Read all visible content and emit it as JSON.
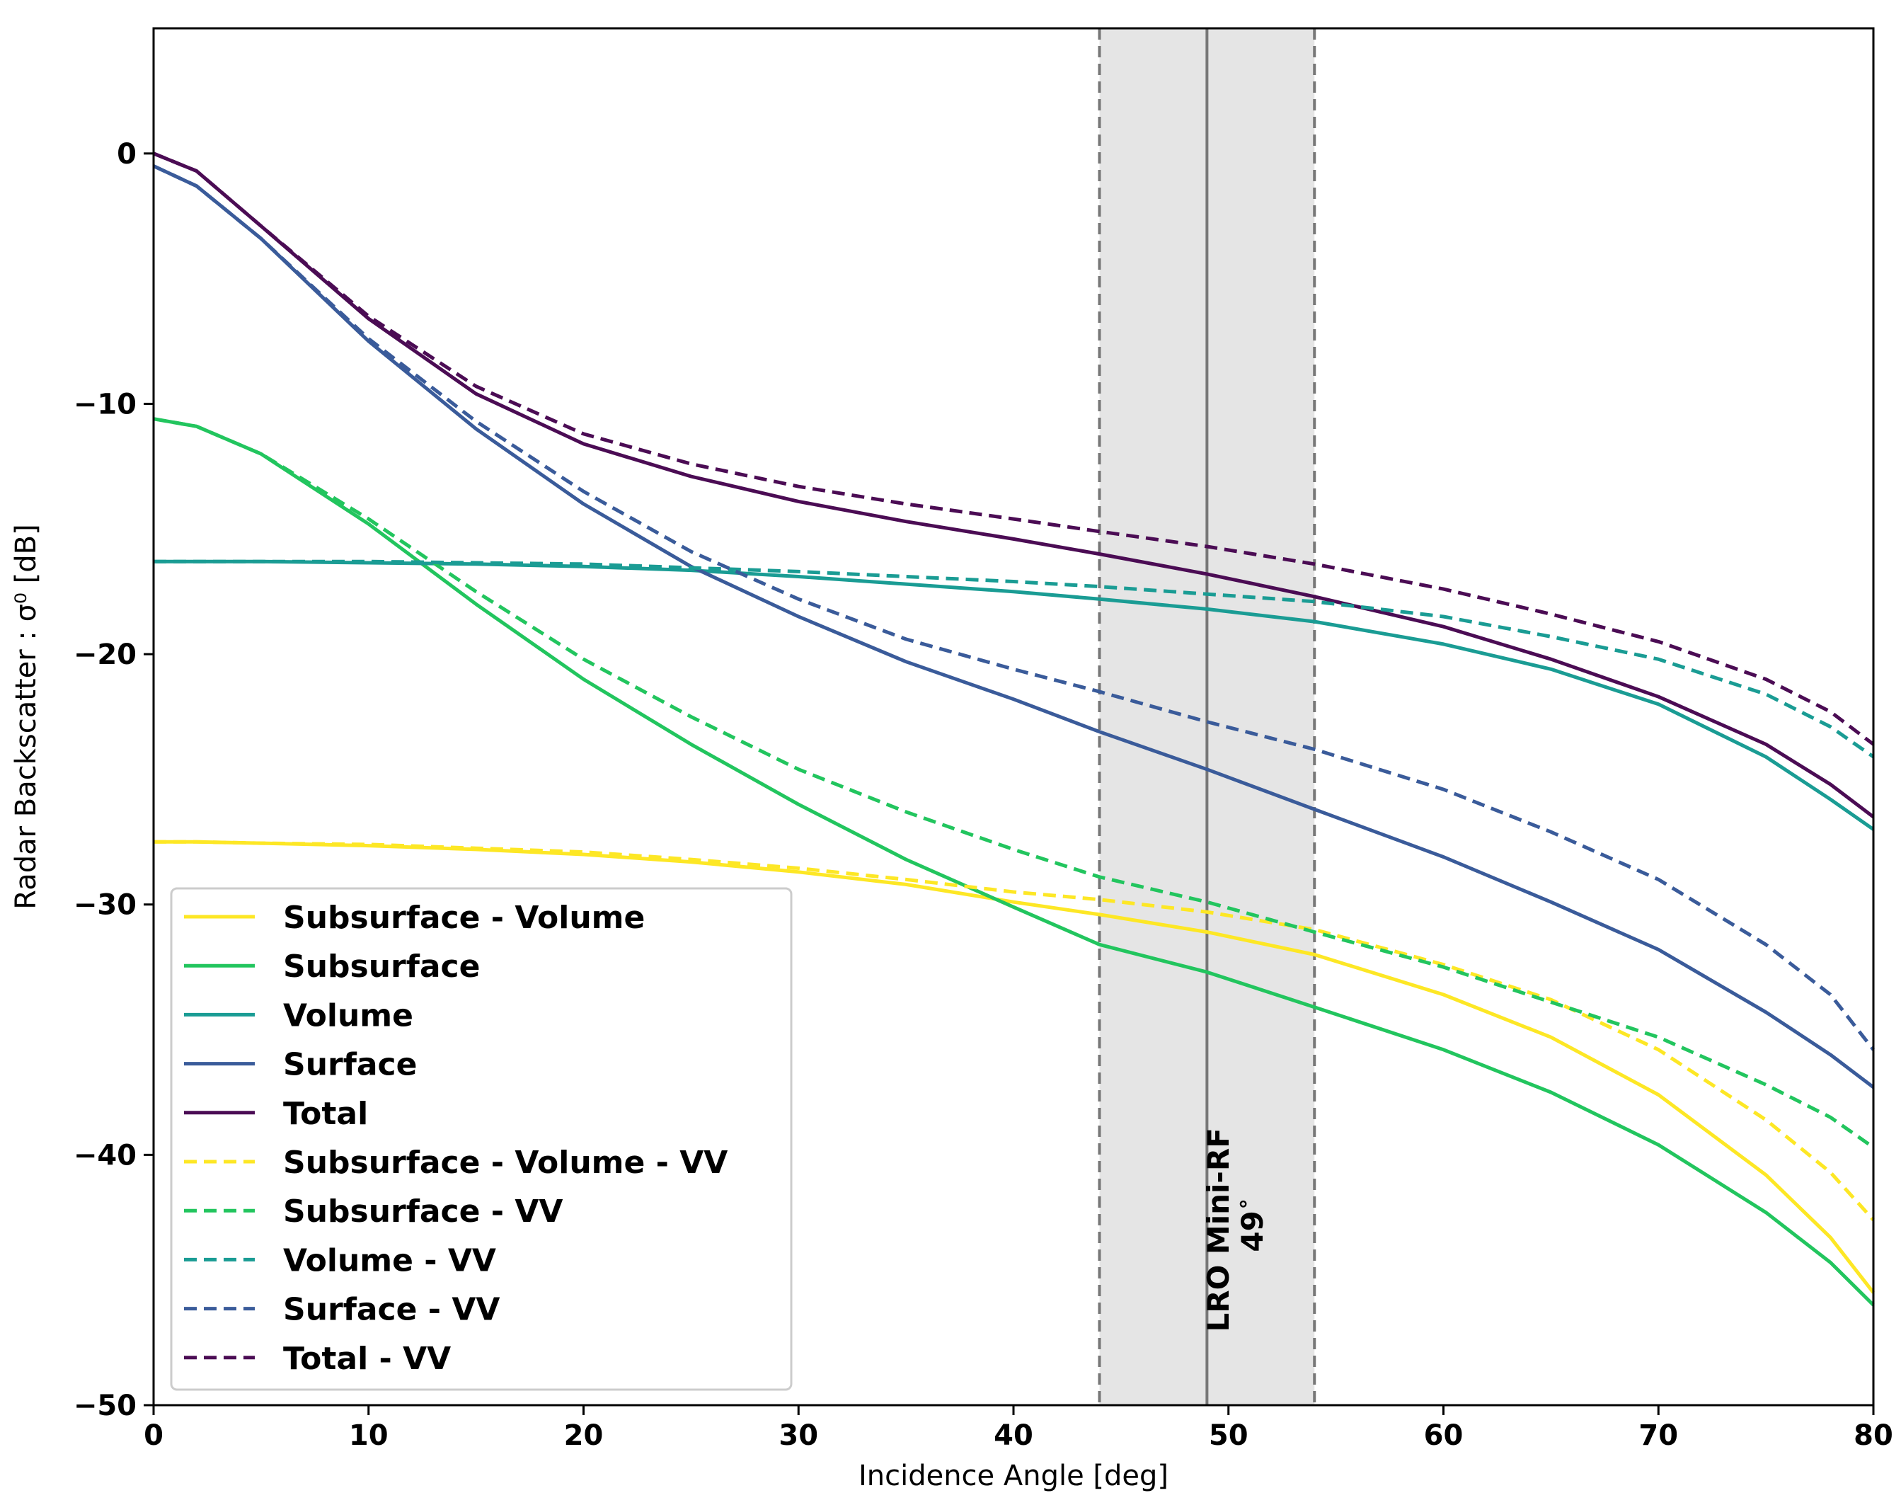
{
  "chart_data": {
    "type": "line",
    "title": "",
    "xlabel": "Incidence Angle [deg]",
    "ylabel": "Radar Backscatter : σ⁰ [dB]",
    "xlim": [
      0,
      80
    ],
    "ylim": [
      -50,
      5
    ],
    "xticks": [
      0,
      10,
      20,
      30,
      40,
      50,
      60,
      70,
      80
    ],
    "yticks": [
      0,
      -10,
      -20,
      -30,
      -40,
      -50
    ],
    "ytick_labels": [
      "0",
      "−10",
      "−20",
      "−30",
      "−40",
      "−50"
    ],
    "grid": false,
    "legend_position": "lower-left",
    "x": [
      0,
      2,
      5,
      10,
      15,
      20,
      25,
      30,
      35,
      40,
      44,
      49,
      54,
      60,
      65,
      70,
      75,
      78,
      80
    ],
    "series": [
      {
        "name": "Subsurface - Volume",
        "color": "#fde725",
        "dash": "solid",
        "values": [
          -27.5,
          -27.5,
          -27.55,
          -27.65,
          -27.8,
          -28.0,
          -28.3,
          -28.7,
          -29.2,
          -29.9,
          -30.4,
          -31.1,
          -32.0,
          -33.6,
          -35.3,
          -37.6,
          -40.8,
          -43.3,
          -45.5
        ]
      },
      {
        "name": "Subsurface",
        "color": "#22c55e",
        "dash": "solid",
        "values": [
          -10.6,
          -10.9,
          -12.0,
          -14.8,
          -18.0,
          -21.0,
          -23.6,
          -26.0,
          -28.2,
          -30.1,
          -31.6,
          -32.7,
          -34.1,
          -35.8,
          -37.5,
          -39.6,
          -42.3,
          -44.3,
          -46.0
        ]
      },
      {
        "name": "Volume",
        "color": "#1a9c94",
        "dash": "solid",
        "values": [
          -16.3,
          -16.3,
          -16.3,
          -16.35,
          -16.4,
          -16.5,
          -16.65,
          -16.9,
          -17.2,
          -17.5,
          -17.8,
          -18.2,
          -18.7,
          -19.6,
          -20.6,
          -22.0,
          -24.1,
          -25.8,
          -27.0
        ]
      },
      {
        "name": "Surface",
        "color": "#3a5b9a",
        "dash": "solid",
        "values": [
          -0.5,
          -1.3,
          -3.4,
          -7.5,
          -11.0,
          -14.0,
          -16.5,
          -18.5,
          -20.3,
          -21.8,
          -23.1,
          -24.6,
          -26.2,
          -28.1,
          -29.9,
          -31.8,
          -34.3,
          -36.0,
          -37.3
        ]
      },
      {
        "name": "Total",
        "color": "#4b0c54",
        "dash": "solid",
        "values": [
          0.0,
          -0.7,
          -2.9,
          -6.6,
          -9.6,
          -11.6,
          -12.9,
          -13.9,
          -14.7,
          -15.4,
          -16.0,
          -16.8,
          -17.7,
          -18.9,
          -20.2,
          -21.7,
          -23.6,
          -25.2,
          -26.5
        ]
      },
      {
        "name": "Subsurface - Volume - VV",
        "color": "#fde725",
        "dash": "dashed",
        "values": [
          -27.5,
          -27.5,
          -27.55,
          -27.6,
          -27.75,
          -27.9,
          -28.2,
          -28.55,
          -29.0,
          -29.5,
          -29.8,
          -30.3,
          -31.0,
          -32.4,
          -33.8,
          -35.8,
          -38.6,
          -40.7,
          -42.6
        ]
      },
      {
        "name": "Subsurface - VV",
        "color": "#22c55e",
        "dash": "dashed",
        "values": [
          -10.6,
          -10.9,
          -12.0,
          -14.6,
          -17.5,
          -20.2,
          -22.5,
          -24.6,
          -26.3,
          -27.8,
          -28.9,
          -29.9,
          -31.1,
          -32.5,
          -33.9,
          -35.3,
          -37.2,
          -38.5,
          -39.7
        ]
      },
      {
        "name": "Volume - VV",
        "color": "#1a9c94",
        "dash": "dashed",
        "values": [
          -16.3,
          -16.3,
          -16.3,
          -16.3,
          -16.35,
          -16.4,
          -16.55,
          -16.7,
          -16.9,
          -17.1,
          -17.3,
          -17.6,
          -17.9,
          -18.5,
          -19.3,
          -20.2,
          -21.6,
          -22.9,
          -24.1
        ]
      },
      {
        "name": "Surface - VV",
        "color": "#3a5b9a",
        "dash": "dashed",
        "values": [
          -0.5,
          -1.3,
          -3.4,
          -7.4,
          -10.7,
          -13.5,
          -15.9,
          -17.8,
          -19.4,
          -20.6,
          -21.5,
          -22.7,
          -23.8,
          -25.4,
          -27.1,
          -29.0,
          -31.6,
          -33.6,
          -35.8
        ]
      },
      {
        "name": "Total - VV",
        "color": "#4b0c54",
        "dash": "dashed",
        "values": [
          0.0,
          -0.7,
          -2.9,
          -6.5,
          -9.3,
          -11.2,
          -12.4,
          -13.3,
          -14.0,
          -14.6,
          -15.1,
          -15.7,
          -16.4,
          -17.4,
          -18.4,
          -19.5,
          -21.0,
          -22.3,
          -23.6
        ]
      }
    ],
    "annotations": [
      {
        "type": "vspan",
        "x0": 44,
        "x1": 54,
        "color": "#e5e5e5",
        "edge_dash": "dashed"
      },
      {
        "type": "vline",
        "x": 49,
        "color": "#777777"
      },
      {
        "line1": "LRO Mini-RF",
        "line2": "49",
        "degree": "∘",
        "x": 50,
        "rotation": -90
      }
    ]
  }
}
